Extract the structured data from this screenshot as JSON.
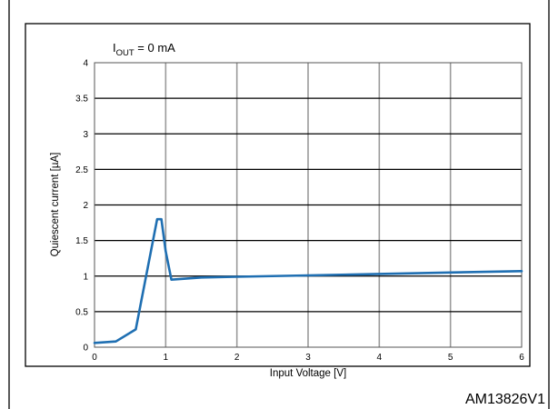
{
  "chart_data": {
    "type": "line",
    "title": "",
    "xlabel": "Input Voltage [V]",
    "ylabel": "Quiescent current [µA]",
    "annotation": {
      "main": "I",
      "sub": "OUT",
      "rest": " = 0 mA"
    },
    "xlim": [
      0,
      6
    ],
    "ylim": [
      0,
      4
    ],
    "x_ticks": [
      "0",
      "1",
      "2",
      "3",
      "4",
      "5",
      "6"
    ],
    "y_ticks": [
      "0",
      "0.5",
      "1",
      "1.5",
      "2",
      "2.5",
      "3",
      "3.5",
      "4"
    ],
    "grid": true,
    "series": [
      {
        "color": "#1f6fb2",
        "x": [
          0,
          0.3,
          0.58,
          0.88,
          0.94,
          1.0,
          1.08,
          1.5,
          2.0,
          3.0,
          4.0,
          5.0,
          6.0
        ],
        "y": [
          0.06,
          0.08,
          0.25,
          1.8,
          1.8,
          1.35,
          0.95,
          0.98,
          0.99,
          1.01,
          1.03,
          1.05,
          1.07
        ]
      }
    ]
  },
  "figure_id": "AM13826V1",
  "colors": {
    "line": "#1f6fb2",
    "grid_major": "#000000",
    "grid_minor": "#9a9a9a"
  }
}
